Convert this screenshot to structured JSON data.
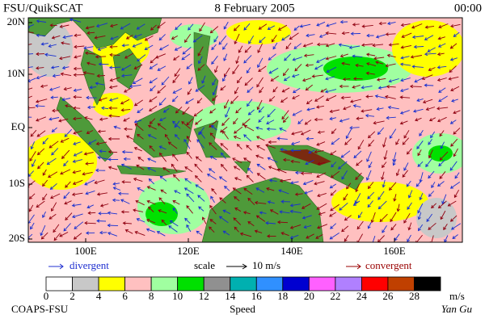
{
  "header": {
    "left": "FSU/QuikSCAT",
    "center": "8 February 2005",
    "right": "00:00"
  },
  "map": {
    "lat_labels": [
      "20N",
      "10N",
      "EQ",
      "10S",
      "20S"
    ],
    "lon_labels": [
      "100E",
      "120E",
      "140E",
      "160E"
    ]
  },
  "legend": {
    "divergent": "divergent",
    "scale": "scale",
    "scale_value": "10 m/s",
    "convergent": "convergent"
  },
  "colorbar": {
    "ticks": [
      0,
      2,
      4,
      6,
      8,
      10,
      12,
      14,
      16,
      18,
      20,
      22,
      24,
      26,
      28
    ],
    "unit": "m/s",
    "title": "Speed",
    "colors": [
      "#ffffff",
      "#c8c8c8",
      "#ffff00",
      "#ffc0c0",
      "#a0ffa0",
      "#00e000",
      "#909090",
      "#00b0b0",
      "#3090ff",
      "#0000d0",
      "#ff60ff",
      "#b080ff",
      "#ff0000",
      "#c04000",
      "#000000"
    ]
  },
  "footer": {
    "left": "COAPS-FSU",
    "right": "Yan Gu"
  }
}
